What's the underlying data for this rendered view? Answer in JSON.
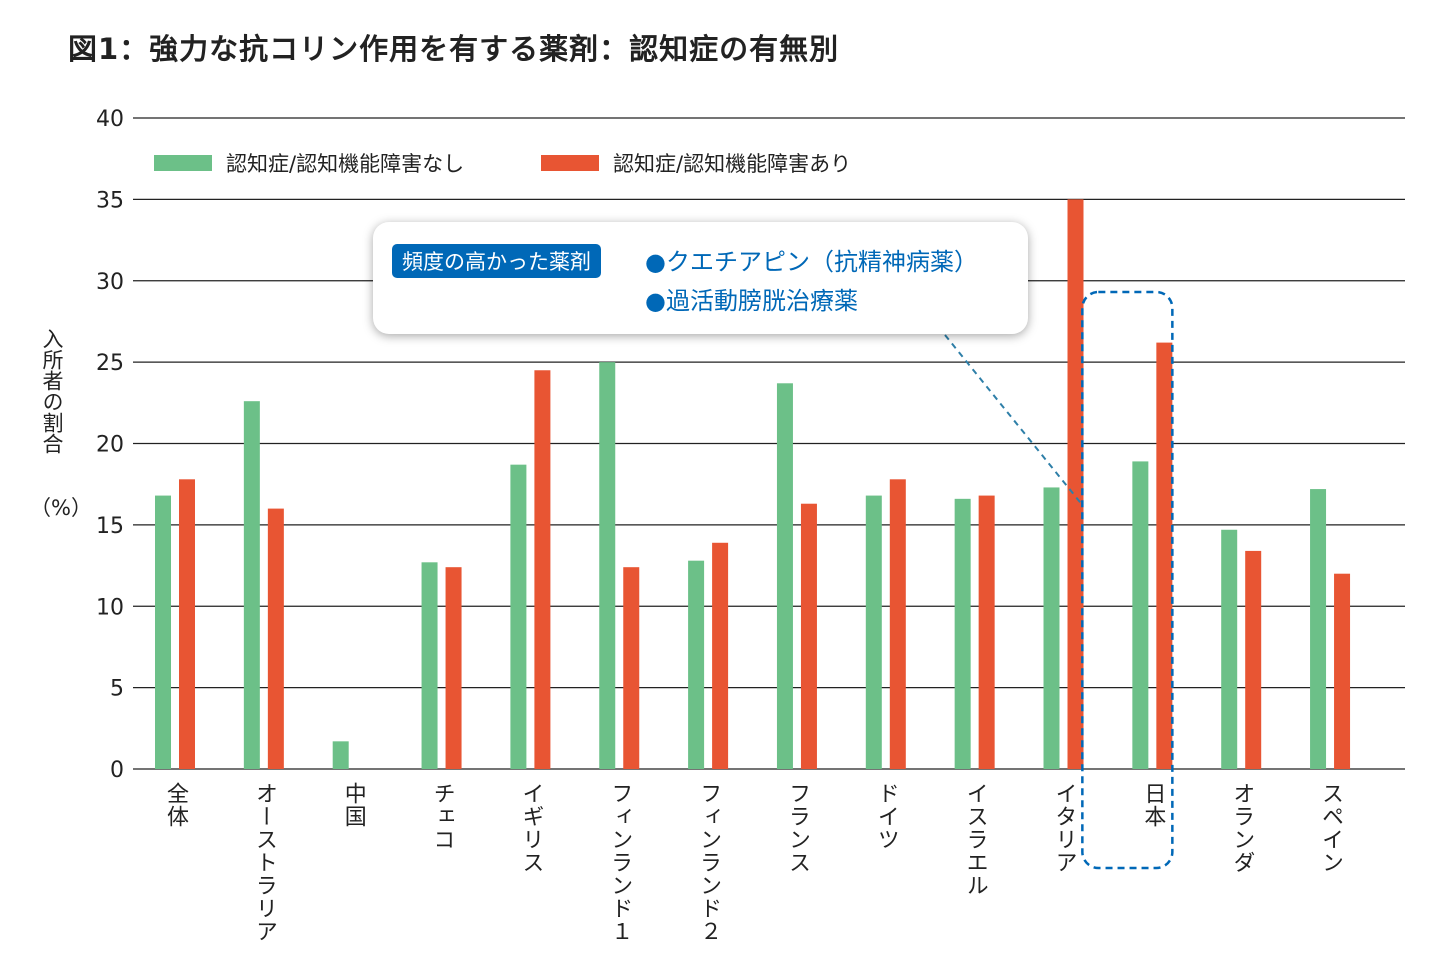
{
  "title": "図1：強力な抗コリン作用を有する薬剤：認知症の有無別",
  "callout": {
    "badge": "頻度の高かった薬剤",
    "items": [
      "●クエチアピン（抗精神病薬）",
      "●過活動膀胱治療薬"
    ],
    "highlighted_category": "日本",
    "color": "#0068b7"
  },
  "chart_data": {
    "type": "bar",
    "title": "図1：強力な抗コリン作用を有する薬剤：認知症の有無別",
    "ylabel": "入所者の割合",
    "yunit": "（%）",
    "xlabel": "",
    "ylim": [
      0,
      40
    ],
    "yticks": [
      0,
      5,
      10,
      15,
      20,
      25,
      30,
      35,
      40
    ],
    "grid": true,
    "legend_position": "top-left",
    "categories": [
      "全体",
      "オーストラリア",
      "中国",
      "チェコ",
      "イギリス",
      "フィンランド１",
      "フィンランド２",
      "フランス",
      "ドイツ",
      "イスラエル",
      "イタリア",
      "日本",
      "オランダ",
      "スペイン"
    ],
    "series": [
      {
        "name": "認知症/認知機能障害なし",
        "color": "#6cc088",
        "values": [
          16.8,
          22.6,
          1.7,
          12.7,
          18.7,
          25.0,
          12.8,
          23.7,
          16.8,
          16.6,
          17.3,
          18.9,
          14.7,
          17.2
        ]
      },
      {
        "name": "認知症/認知機能障害あり",
        "color": "#e85533",
        "values": [
          17.8,
          16.0,
          0,
          12.4,
          24.5,
          12.4,
          13.9,
          16.3,
          17.8,
          16.8,
          35.0,
          26.2,
          13.4,
          12.0
        ]
      }
    ]
  }
}
